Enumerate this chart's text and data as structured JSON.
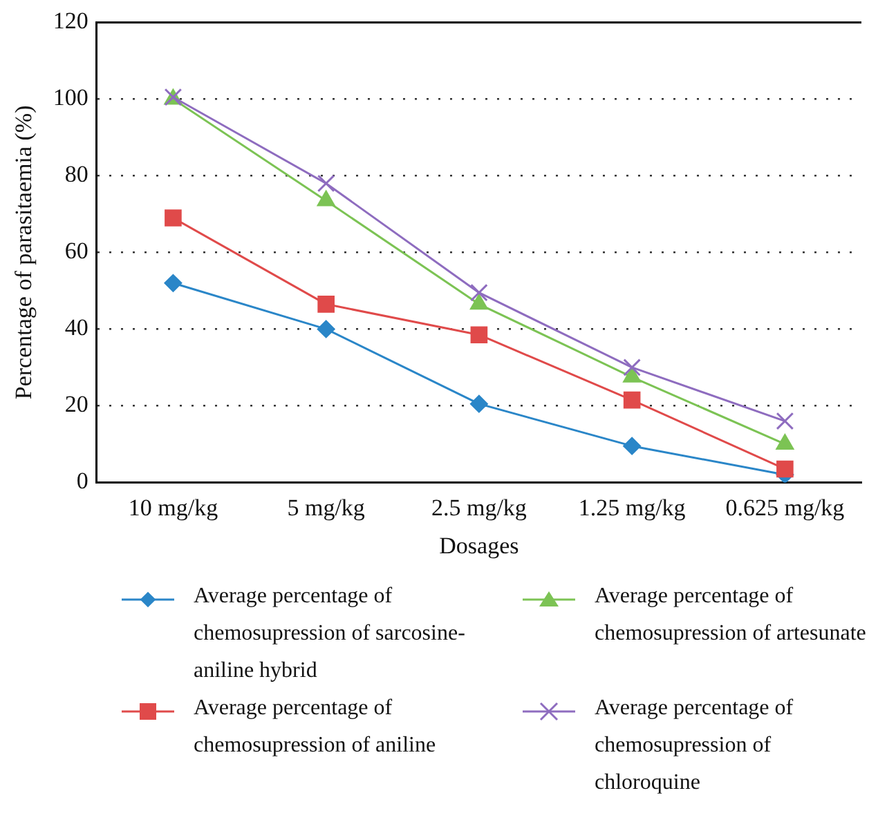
{
  "chart_data": {
    "type": "line",
    "xlabel": "Dosages",
    "ylabel": "Percentage of parasitaemia (%)",
    "categories": [
      "10 mg/kg",
      "5 mg/kg",
      "2.5 mg/kg",
      "1.25 mg/kg",
      "0.625 mg/kg"
    ],
    "series": [
      {
        "name": "Average percentage of chemosupression of sarcosine-aniline hybrid",
        "color": "#2a86c8",
        "marker": "diamond",
        "values": [
          52,
          40,
          20.5,
          9.5,
          2
        ]
      },
      {
        "name": "Average percentage of chemosupression of aniline",
        "color": "#e04a4a",
        "marker": "square",
        "values": [
          69,
          46.5,
          38.5,
          21.5,
          3.5
        ]
      },
      {
        "name": "Average percentage of chemosupression of artesunate",
        "color": "#7cc354",
        "marker": "triangle",
        "values": [
          100,
          73.5,
          46.5,
          27.5,
          10
        ]
      },
      {
        "name": "Average percentage of chemosupression of chloroquine",
        "color": "#8e6cbf",
        "marker": "cross",
        "values": [
          100.5,
          78,
          49.5,
          30,
          16
        ]
      }
    ],
    "ylim": [
      0,
      120
    ],
    "yticks": [
      0,
      20,
      40,
      60,
      80,
      100,
      120
    ],
    "grid": "y",
    "legend": "bottom"
  }
}
